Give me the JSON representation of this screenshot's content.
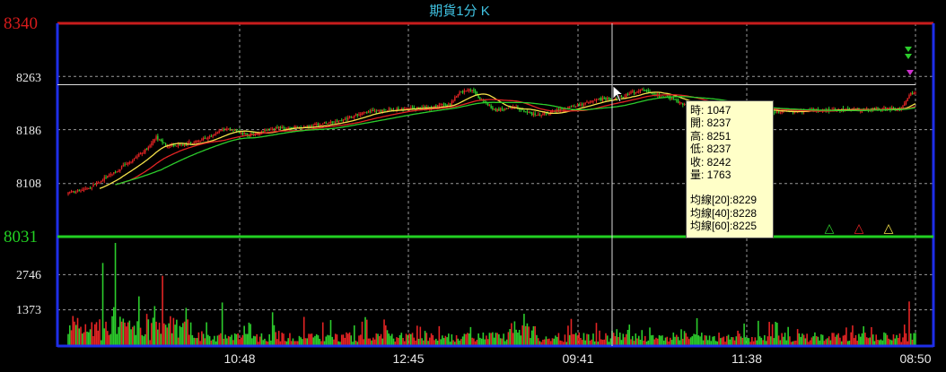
{
  "chart_data": {
    "type": "candlestick",
    "title": "期貨1分 K",
    "price_axis": {
      "range": [
        8031,
        8340
      ],
      "high_label": "8340",
      "low_label": "8031",
      "ticks": [
        "8263",
        "8186",
        "8108"
      ]
    },
    "volume_axis": {
      "max": 4120,
      "ticks": [
        "2746",
        "1373"
      ]
    },
    "x_ticks": [
      "10:48",
      "12:45",
      "09:41",
      "11:38",
      "08:50"
    ],
    "bar_count": 540,
    "price_path": [
      [
        0,
        8094
      ],
      [
        12,
        8100
      ],
      [
        25,
        8118
      ],
      [
        40,
        8140
      ],
      [
        50,
        8158
      ],
      [
        56,
        8175
      ],
      [
        62,
        8163
      ],
      [
        75,
        8165
      ],
      [
        90,
        8176
      ],
      [
        100,
        8188
      ],
      [
        115,
        8178
      ],
      [
        130,
        8188
      ],
      [
        150,
        8190
      ],
      [
        170,
        8198
      ],
      [
        190,
        8212
      ],
      [
        210,
        8216
      ],
      [
        230,
        8218
      ],
      [
        243,
        8224
      ],
      [
        250,
        8242
      ],
      [
        258,
        8244
      ],
      [
        262,
        8230
      ],
      [
        272,
        8214
      ],
      [
        285,
        8218
      ],
      [
        298,
        8206
      ],
      [
        312,
        8214
      ],
      [
        322,
        8220
      ],
      [
        338,
        8230
      ],
      [
        350,
        8232
      ],
      [
        358,
        8240
      ],
      [
        368,
        8244
      ],
      [
        376,
        8234
      ],
      [
        382,
        8232
      ],
      [
        392,
        8222
      ],
      [
        405,
        8220
      ],
      [
        420,
        8218
      ],
      [
        435,
        8216
      ],
      [
        448,
        8212
      ],
      [
        462,
        8212
      ],
      [
        475,
        8214
      ],
      [
        490,
        8215
      ],
      [
        505,
        8214
      ],
      [
        518,
        8216
      ],
      [
        530,
        8216
      ],
      [
        536,
        8238
      ]
    ],
    "moving_averages": [
      {
        "name": "均線[20]",
        "color": "#f5e24a"
      },
      {
        "name": "均線[40]",
        "color": "#e32424"
      },
      {
        "name": "均線[60]",
        "color": "#2ccc2c"
      }
    ],
    "crosshair": {
      "bar_index": 346,
      "price": 8251
    },
    "tooltip": {
      "time": "時: 1047",
      "open": "開: 8237",
      "high": "高: 8251",
      "low": "低: 8237",
      "close": "收: 8242",
      "volume": "量: 1763",
      "ma20": "均線[20]:8229",
      "ma40": "均線[40]:8228",
      "ma60": "均線[60]:8225"
    },
    "markers": [
      {
        "symbol": "△",
        "color": "#2ccc2c"
      },
      {
        "symbol": "△",
        "color": "#e32424"
      },
      {
        "symbol": "△",
        "color": "#f5e24a"
      }
    ],
    "colors": {
      "up": "#e32424",
      "down": "#2ccc2c",
      "frame_top": "#c81d1d",
      "frame_side": "#1e2ee8",
      "divider": "#22d022",
      "crosshair": "#dddddd"
    }
  }
}
